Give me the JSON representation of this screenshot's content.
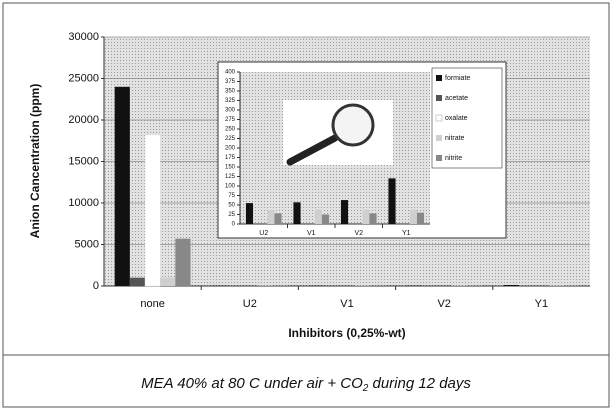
{
  "chart_data": [
    {
      "type": "bar",
      "ylabel": "Anion Cancentration (ppm)",
      "xlabel": "Inhibitors (0,25%-wt)",
      "categories": [
        "none",
        "U2",
        "V1",
        "V2",
        "Y1"
      ],
      "series": [
        {
          "color": "#111111",
          "values": [
            24000,
            55,
            57,
            63,
            120
          ]
        },
        {
          "color": "#555555",
          "values": [
            1000,
            0,
            0,
            0,
            0
          ]
        },
        {
          "color": "#ffffff",
          "values": [
            18200,
            0,
            0,
            0,
            0
          ]
        },
        {
          "color": "#cfcfcf",
          "values": [
            1000,
            35,
            38,
            38,
            38
          ]
        },
        {
          "color": "#888888",
          "values": [
            5700,
            28,
            25,
            28,
            30
          ]
        }
      ],
      "ylim": [
        0,
        30000
      ],
      "yticks": [
        0,
        5000,
        10000,
        15000,
        20000,
        25000,
        30000
      ],
      "grid": true
    },
    {
      "type": "bar",
      "categories": [
        "U2",
        "V1",
        "V2",
        "Y1"
      ],
      "series": [
        {
          "name": "formiate",
          "color": "#111111",
          "values": [
            55,
            57,
            63,
            120
          ]
        },
        {
          "name": "acetate",
          "color": "#555555",
          "values": [
            0,
            0,
            0,
            0
          ]
        },
        {
          "name": "oxalate",
          "color": "#ffffff",
          "values": [
            0,
            0,
            0,
            0
          ]
        },
        {
          "name": "nitrate",
          "color": "#cfcfcf",
          "values": [
            35,
            38,
            38,
            38
          ]
        },
        {
          "name": "nitrite",
          "color": "#888888",
          "values": [
            28,
            25,
            28,
            30
          ]
        }
      ],
      "ylim": [
        0,
        400
      ],
      "yticks": [
        0,
        25,
        50,
        75,
        100,
        125,
        150,
        175,
        200,
        225,
        250,
        275,
        300,
        325,
        350,
        375,
        400
      ],
      "grid": false,
      "legend": "right"
    }
  ],
  "caption": {
    "before": "MEA 40% at 80 C under air + CO",
    "sub": "2",
    "after": " during 12 days"
  }
}
